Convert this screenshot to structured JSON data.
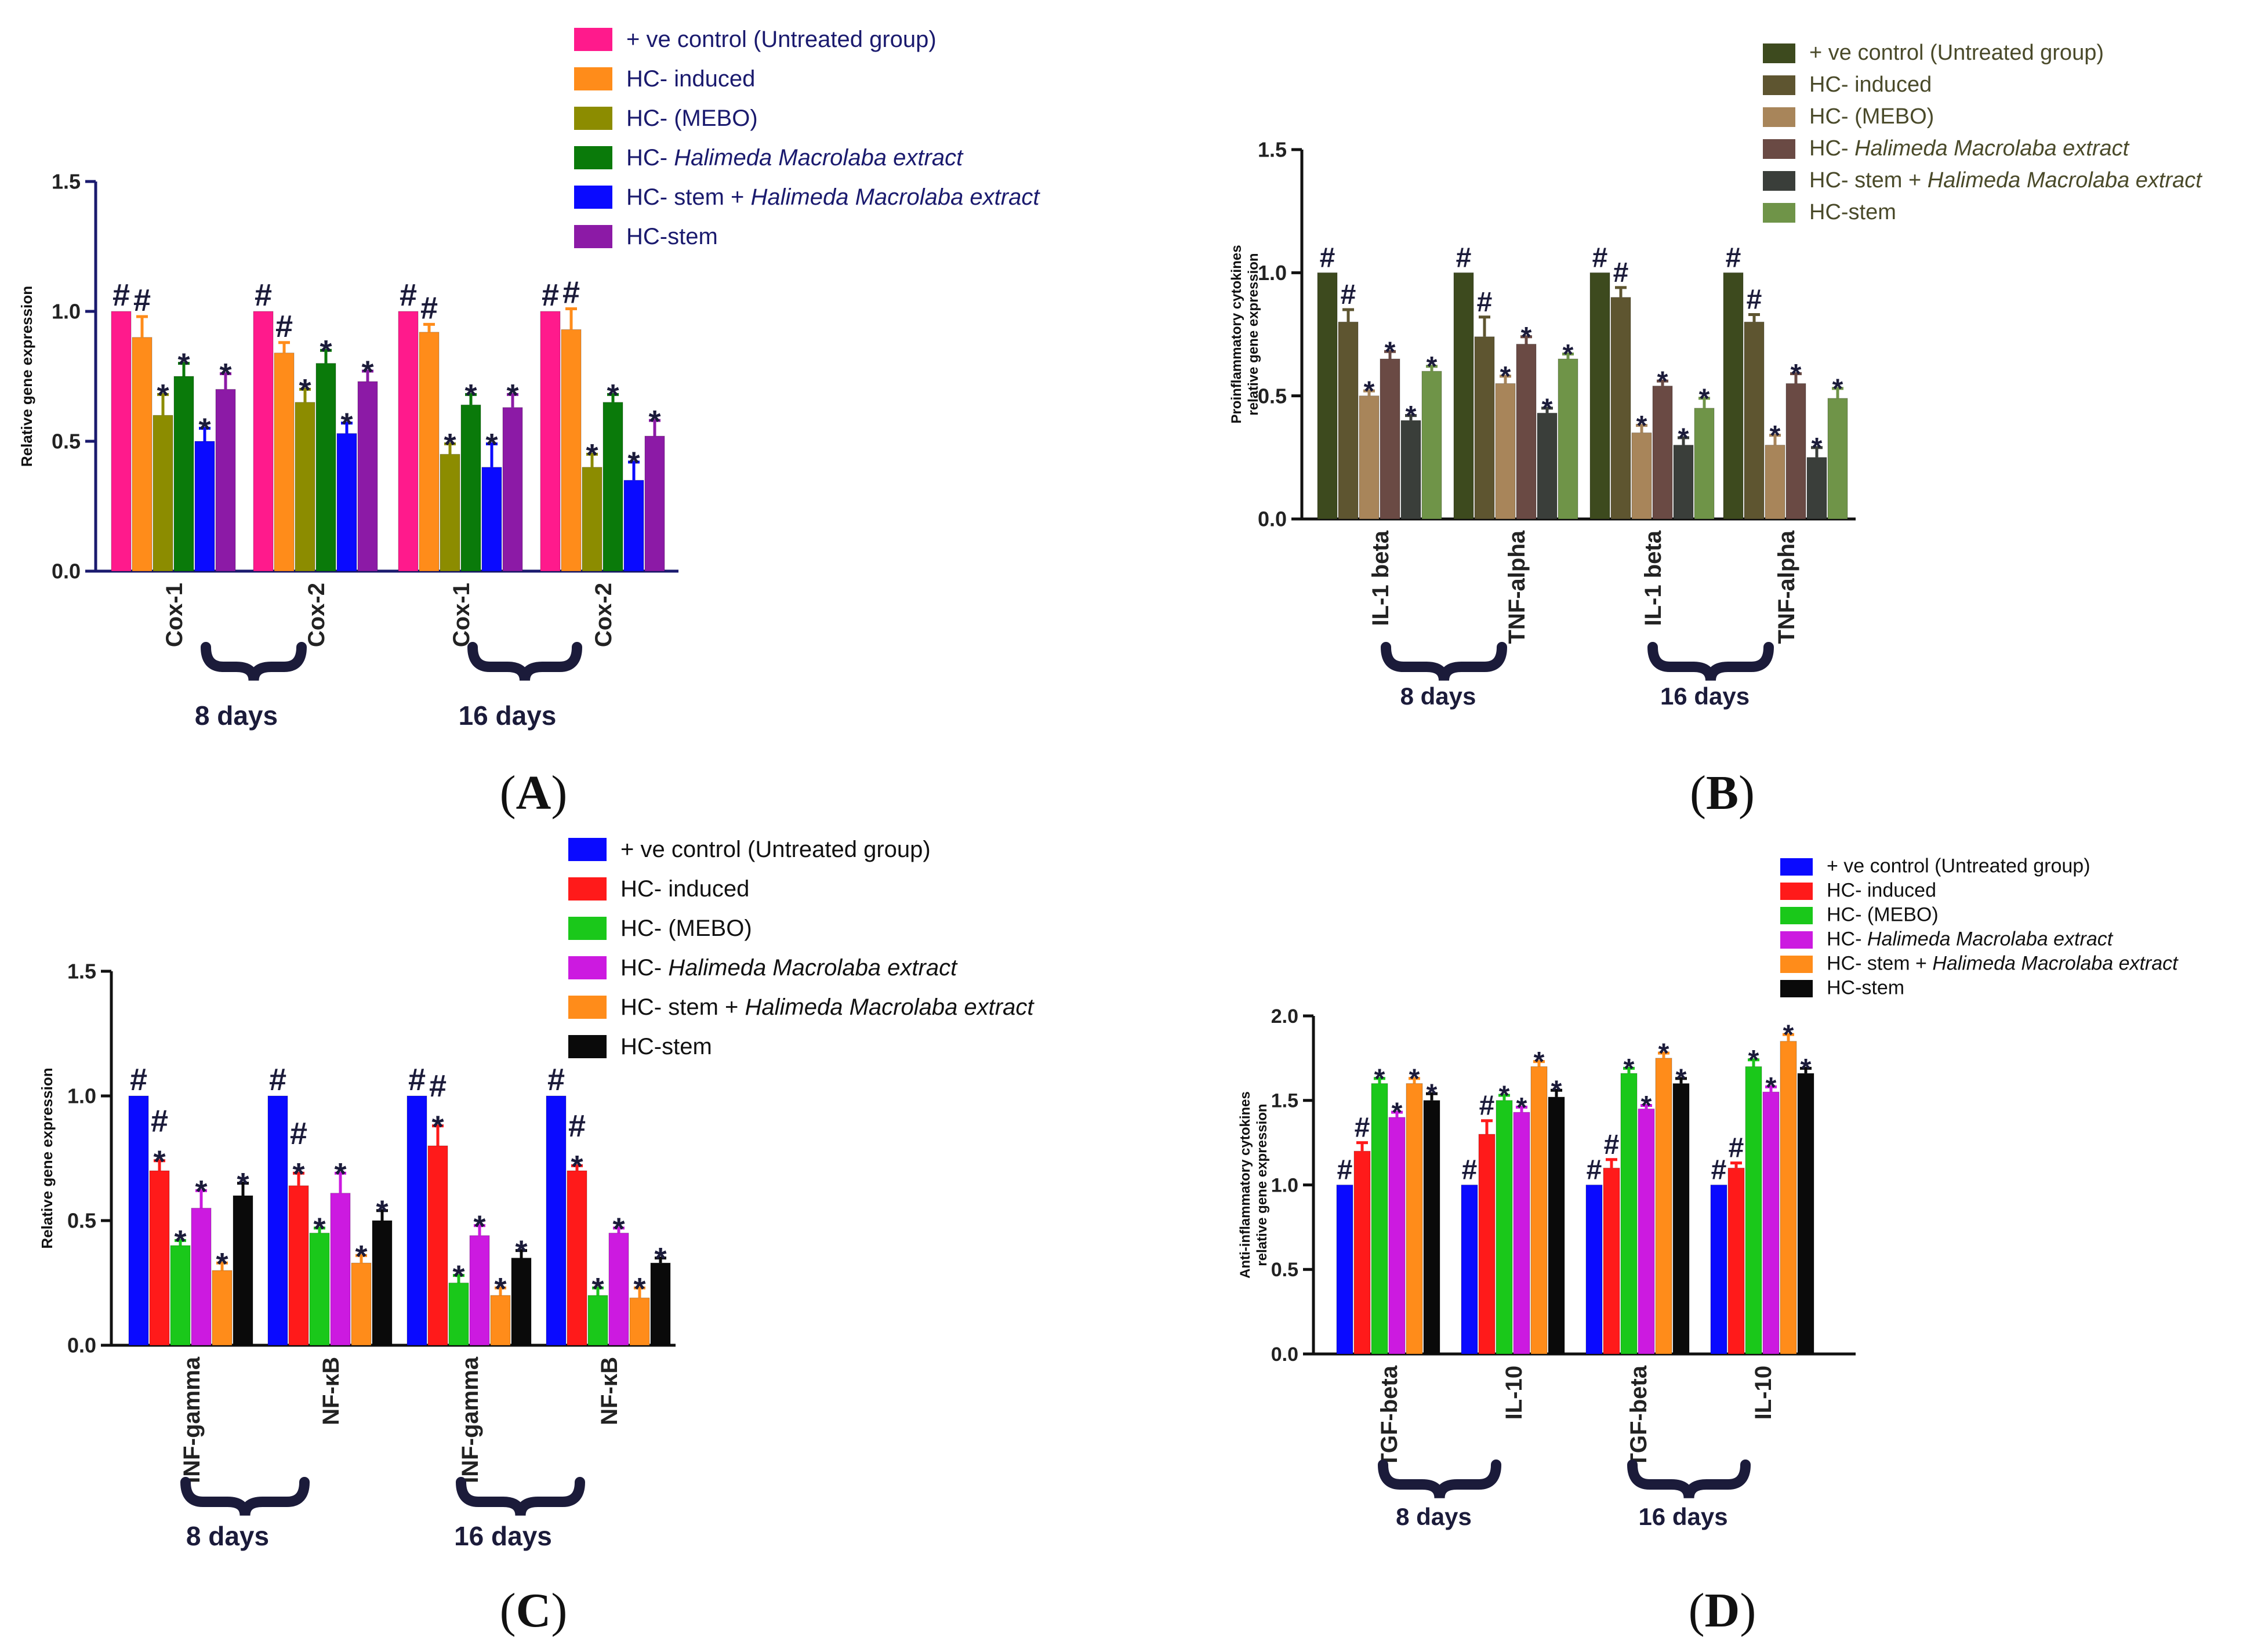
{
  "panels": [
    {
      "id": "A",
      "label_prefix": "(",
      "label_letter": "A",
      "label_suffix": ")",
      "text_color": "#1a1a6e",
      "legend_text_color": "#1a1a6e",
      "chart_data": {
        "type": "bar",
        "title": "",
        "ylabel": "Relative gene expression",
        "xlabel": "",
        "ylim": [
          0,
          1.5
        ],
        "yticks": [
          "0.0",
          "0.5",
          "1.0",
          "1.5"
        ],
        "ytick_values": [
          0,
          0.5,
          1.0,
          1.5
        ],
        "categories": [
          "Cox-1",
          "Cox-2",
          "Cox-1",
          "Cox-2"
        ],
        "groups": [
          "8 days",
          "16 days"
        ],
        "series": [
          {
            "name": "+ ve control (Untreated group)",
            "name_plain": "+ ve control (Untreated group)",
            "name_italic": "",
            "color": "#ff1a8c",
            "values": [
              1.0,
              1.0,
              1.0,
              1.0
            ],
            "errors": [
              0,
              0,
              0,
              0
            ],
            "marks": [
              "#",
              "#",
              "#",
              "#"
            ]
          },
          {
            "name": "HC- induced",
            "name_plain": "HC- induced",
            "name_italic": "",
            "color": "#ff8c1a",
            "values": [
              0.9,
              0.84,
              0.92,
              0.93
            ],
            "errors": [
              0.08,
              0.04,
              0.03,
              0.08
            ],
            "marks": [
              "#",
              "#",
              "#",
              "#"
            ]
          },
          {
            "name": "HC- (MEBO)",
            "name_plain": "HC- (MEBO)",
            "name_italic": "",
            "color": "#8c8c00",
            "values": [
              0.6,
              0.65,
              0.45,
              0.4
            ],
            "errors": [
              0.08,
              0.05,
              0.04,
              0.05
            ],
            "marks": [
              "*",
              "*",
              "*",
              "*"
            ]
          },
          {
            "name": "HC- Halimeda Macrolaba extract",
            "name_plain": "HC- ",
            "name_italic": "Halimeda Macrolaba extract",
            "color": "#0a7a0a",
            "values": [
              0.75,
              0.8,
              0.64,
              0.65
            ],
            "errors": [
              0.05,
              0.05,
              0.04,
              0.03
            ],
            "marks": [
              "*",
              "*",
              "*",
              "*"
            ]
          },
          {
            "name": "HC- stem + Halimeda Macrolaba extract",
            "name_plain": "HC- stem + ",
            "name_italic": "Halimeda Macrolaba extract",
            "color": "#0a0aff",
            "values": [
              0.5,
              0.53,
              0.4,
              0.35
            ],
            "errors": [
              0.05,
              0.04,
              0.09,
              0.07
            ],
            "marks": [
              "*",
              "*",
              "*",
              "*"
            ]
          },
          {
            "name": "HC-stem",
            "name_plain": "HC-stem",
            "name_italic": "",
            "color": "#8c1aa6",
            "values": [
              0.7,
              0.73,
              0.63,
              0.52
            ],
            "errors": [
              0.06,
              0.04,
              0.05,
              0.06
            ],
            "marks": [
              "*",
              "*",
              "*",
              "*"
            ]
          }
        ]
      }
    },
    {
      "id": "B",
      "label_prefix": "(",
      "label_letter": "B",
      "label_suffix": ")",
      "text_color": "#111111",
      "legend_text_color": "#4a4a2a",
      "chart_data": {
        "type": "bar",
        "title": "",
        "ylabel": "Proinflammatory cytokines relative gene expression",
        "ylabel_lines": [
          "Proinflammatory cytokines",
          "relative gene expression"
        ],
        "xlabel": "",
        "ylim": [
          0,
          1.5
        ],
        "yticks": [
          "0.0",
          "0.5",
          "1.0",
          "1.5"
        ],
        "ytick_values": [
          0,
          0.5,
          1.0,
          1.5
        ],
        "categories": [
          "IL-1 beta",
          "TNF-alpha",
          "IL-1 beta",
          "TNF-alpha"
        ],
        "groups": [
          "8 days",
          "16 days"
        ],
        "series": [
          {
            "name": "+ ve control (Untreated group)",
            "name_plain": "+ ve control (Untreated group)",
            "name_italic": "",
            "color": "#3d4a1e",
            "values": [
              1.0,
              1.0,
              1.0,
              1.0
            ],
            "errors": [
              0,
              0,
              0,
              0
            ],
            "marks": [
              "#",
              "#",
              "#",
              "#"
            ]
          },
          {
            "name": "HC- induced",
            "name_plain": "HC- induced",
            "name_italic": "",
            "color": "#5e5530",
            "values": [
              0.8,
              0.74,
              0.9,
              0.8
            ],
            "errors": [
              0.05,
              0.08,
              0.04,
              0.03
            ],
            "marks": [
              "#",
              "#",
              "#",
              "#"
            ]
          },
          {
            "name": "HC- (MEBO)",
            "name_plain": "HC- (MEBO)",
            "name_italic": "",
            "color": "#a8855a",
            "values": [
              0.5,
              0.55,
              0.35,
              0.3
            ],
            "errors": [
              0.02,
              0.03,
              0.03,
              0.04
            ],
            "marks": [
              "*",
              "*",
              "*",
              "*"
            ]
          },
          {
            "name": "HC- Halimeda Macrolaba extract",
            "name_plain": "HC-  ",
            "name_italic": "Halimeda Macrolaba extract",
            "color": "#6a4a44",
            "values": [
              0.65,
              0.71,
              0.54,
              0.55
            ],
            "errors": [
              0.03,
              0.03,
              0.02,
              0.04
            ],
            "marks": [
              "*",
              "*",
              "*",
              "*"
            ]
          },
          {
            "name": "HC- stem + Halimeda Macrolaba extract",
            "name_plain": "HC- stem + ",
            "name_italic": "Halimeda Macrolaba extract",
            "color": "#3a3e3a",
            "values": [
              0.4,
              0.43,
              0.3,
              0.25
            ],
            "errors": [
              0.02,
              0.02,
              0.03,
              0.04
            ],
            "marks": [
              "*",
              "*",
              "*",
              "*"
            ]
          },
          {
            "name": "HC-stem",
            "name_plain": "HC-stem",
            "name_italic": "",
            "color": "#6f9448",
            "values": [
              0.6,
              0.65,
              0.45,
              0.49
            ],
            "errors": [
              0.02,
              0.02,
              0.04,
              0.04
            ],
            "marks": [
              "*",
              "*",
              "*",
              "*"
            ]
          }
        ]
      }
    },
    {
      "id": "C",
      "label_prefix": "(",
      "label_letter": "C",
      "label_suffix": ")",
      "text_color": "#111111",
      "legend_text_color": "#111111",
      "chart_data": {
        "type": "bar",
        "title": "",
        "ylabel": "Relative gene expression",
        "xlabel": "",
        "ylim": [
          0,
          1.5
        ],
        "yticks": [
          "0.0",
          "0.5",
          "1.0",
          "1.5"
        ],
        "ytick_values": [
          0,
          0.5,
          1.0,
          1.5
        ],
        "categories": [
          "INF-gamma",
          "NF-κB",
          "INF-gamma",
          "NF-κB"
        ],
        "groups": [
          "8 days",
          "16 days"
        ],
        "series": [
          {
            "name": "+ ve control (Untreated group)",
            "name_plain": "+ ve control (Untreated group)",
            "name_italic": "",
            "color": "#0a0aff",
            "values": [
              1.0,
              1.0,
              1.0,
              1.0
            ],
            "errors": [
              0,
              0,
              0,
              0
            ],
            "marks": [
              "#",
              "#",
              "#",
              "#"
            ]
          },
          {
            "name": "HC- induced",
            "name_plain": "HC- induced",
            "name_italic": "",
            "color": "#ff1a1a",
            "values": [
              0.7,
              0.64,
              0.8,
              0.7
            ],
            "errors": [
              0.04,
              0.05,
              0.08,
              0.02
            ],
            "marks": [
              "#*",
              "#*",
              "#*",
              "#*"
            ]
          },
          {
            "name": "HC- (MEBO)",
            "name_plain": "HC- (MEBO)",
            "name_italic": "",
            "color": "#1ac81a",
            "values": [
              0.4,
              0.45,
              0.25,
              0.2
            ],
            "errors": [
              0.02,
              0.02,
              0.03,
              0.03
            ],
            "marks": [
              "*",
              "*",
              "*",
              "*"
            ]
          },
          {
            "name": "HC- Halimeda Macrolaba extract",
            "name_plain": "HC- ",
            "name_italic": "Halimeda Macrolaba extract",
            "color": "#cc1ae0",
            "values": [
              0.55,
              0.61,
              0.44,
              0.45
            ],
            "errors": [
              0.07,
              0.08,
              0.04,
              0.02
            ],
            "marks": [
              "*",
              "*",
              "*",
              "*"
            ]
          },
          {
            "name": "HC- stem + Halimeda Macrolaba extract",
            "name_plain": "HC- stem + ",
            "name_italic": "Halimeda Macrolaba extract",
            "color": "#ff8c1a",
            "values": [
              0.3,
              0.33,
              0.2,
              0.19
            ],
            "errors": [
              0.03,
              0.03,
              0.03,
              0.04
            ],
            "marks": [
              "*",
              "*",
              "*",
              "*"
            ]
          },
          {
            "name": "HC-stem",
            "name_plain": "HC-stem",
            "name_italic": "",
            "color": "#0a0a0a",
            "values": [
              0.6,
              0.5,
              0.35,
              0.33
            ],
            "errors": [
              0.05,
              0.04,
              0.03,
              0.02
            ],
            "marks": [
              "*",
              "*",
              "*",
              "*"
            ]
          }
        ]
      }
    },
    {
      "id": "D",
      "label_prefix": "(",
      "label_letter": "D",
      "label_suffix": ")",
      "text_color": "#111111",
      "legend_text_color": "#111111",
      "chart_data": {
        "type": "bar",
        "title": "",
        "ylabel": "Anti-inflammatory cytokines relative gene expression",
        "ylabel_lines": [
          "Anti-inflammatory cytokines",
          "relative gene expression"
        ],
        "xlabel": "",
        "ylim": [
          0,
          2.0
        ],
        "yticks": [
          "0.0",
          "0.5",
          "1.0",
          "1.5",
          "2.0"
        ],
        "ytick_values": [
          0,
          0.5,
          1.0,
          1.5,
          2.0
        ],
        "categories": [
          "TGF-beta",
          "IL-10",
          "TGF-beta",
          "IL-10"
        ],
        "groups": [
          "8 days",
          "16 days"
        ],
        "series": [
          {
            "name": "+ ve control (Untreated group)",
            "name_plain": "+ ve control (Untreated group)",
            "name_italic": "",
            "color": "#0a0aff",
            "values": [
              1.0,
              1.0,
              1.0,
              1.0
            ],
            "errors": [
              0,
              0,
              0,
              0
            ],
            "marks": [
              "#",
              "#",
              "#",
              "#"
            ]
          },
          {
            "name": "HC- induced",
            "name_plain": "HC- induced",
            "name_italic": "",
            "color": "#ff1a1a",
            "values": [
              1.2,
              1.3,
              1.1,
              1.1
            ],
            "errors": [
              0.05,
              0.08,
              0.05,
              0.03
            ],
            "marks": [
              "#",
              "#",
              "#",
              "#"
            ]
          },
          {
            "name": "HC- (MEBO)",
            "name_plain": "HC- (MEBO)",
            "name_italic": "",
            "color": "#1ac81a",
            "values": [
              1.6,
              1.5,
              1.66,
              1.7
            ],
            "errors": [
              0.03,
              0.03,
              0.03,
              0.04
            ],
            "marks": [
              "*",
              "*",
              "*",
              "*"
            ]
          },
          {
            "name": "HC- Halimeda Macrolaba extract",
            "name_plain": "HC- ",
            "name_italic": "Halimeda Macrolaba extract",
            "color": "#cc1ae0",
            "values": [
              1.4,
              1.43,
              1.45,
              1.55
            ],
            "errors": [
              0.03,
              0.03,
              0.02,
              0.03
            ],
            "marks": [
              "*",
              "*",
              "*",
              "*"
            ]
          },
          {
            "name": "HC- stem + Halimeda Macrolaba extract",
            "name_plain": "HC- stem + ",
            "name_italic": "Halimeda Macrolaba extract",
            "color": "#ff8c1a",
            "values": [
              1.6,
              1.7,
              1.75,
              1.85
            ],
            "errors": [
              0.03,
              0.03,
              0.03,
              0.04
            ],
            "marks": [
              "*",
              "*",
              "*",
              "*"
            ]
          },
          {
            "name": "HC-stem",
            "name_plain": "HC-stem",
            "name_italic": "",
            "color": "#0a0a0a",
            "values": [
              1.5,
              1.52,
              1.6,
              1.66
            ],
            "errors": [
              0.04,
              0.04,
              0.03,
              0.03
            ],
            "marks": [
              "*",
              "*",
              "*",
              "*"
            ]
          }
        ]
      }
    }
  ]
}
